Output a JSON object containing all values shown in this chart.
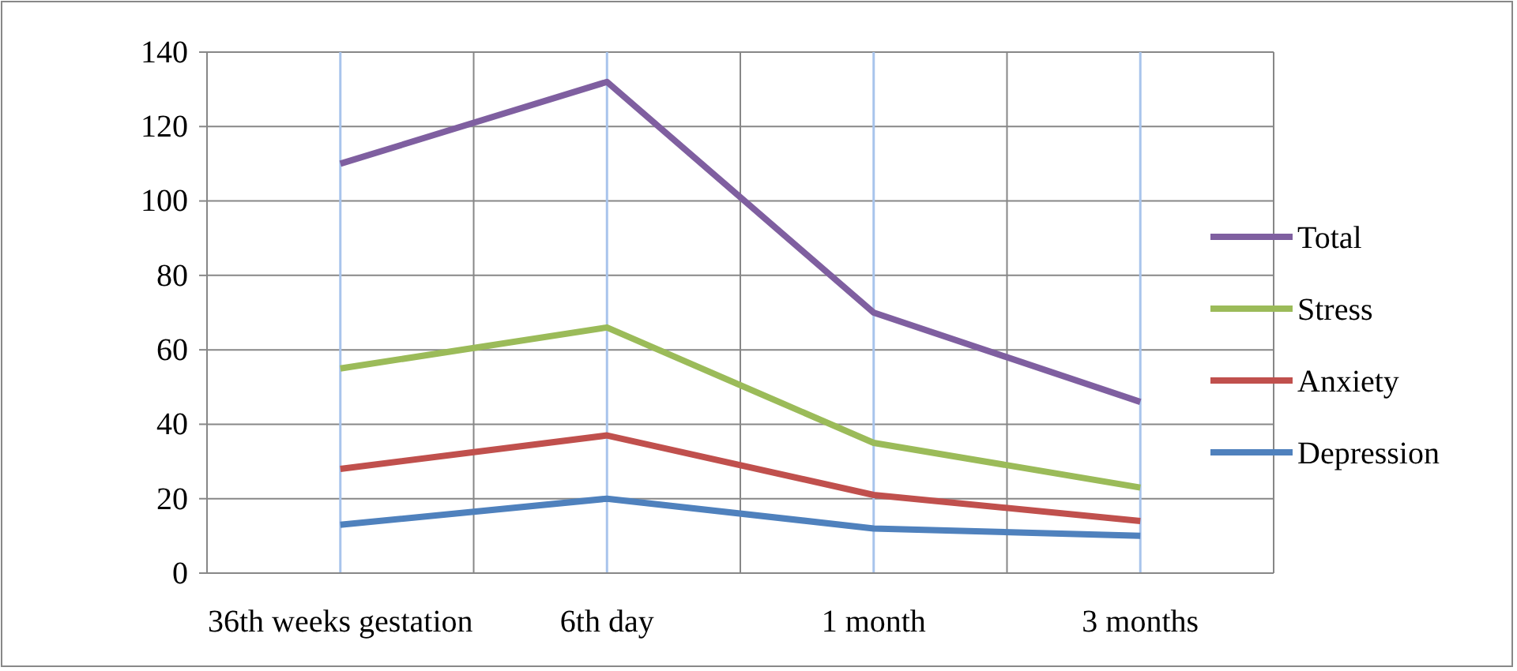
{
  "chart_data": {
    "type": "line",
    "categories": [
      "36th weeks gestation",
      "6th day",
      "1 month",
      "3 months"
    ],
    "series": [
      {
        "name": "Total",
        "color": "#7f5fa0",
        "values": [
          110,
          132,
          70,
          46
        ]
      },
      {
        "name": "Stress",
        "color": "#9bbb59",
        "values": [
          55,
          66,
          35,
          23
        ]
      },
      {
        "name": "Anxiety",
        "color": "#c0504d",
        "values": [
          28,
          37,
          21,
          14
        ]
      },
      {
        "name": "Depression",
        "color": "#4f81bd",
        "values": [
          13,
          20,
          12,
          10
        ]
      }
    ],
    "ylim": [
      0,
      140
    ],
    "yticks": [
      0,
      20,
      40,
      60,
      80,
      100,
      120,
      140
    ],
    "grid": true,
    "legend": "right",
    "marker": "none",
    "line_style": "solid"
  }
}
